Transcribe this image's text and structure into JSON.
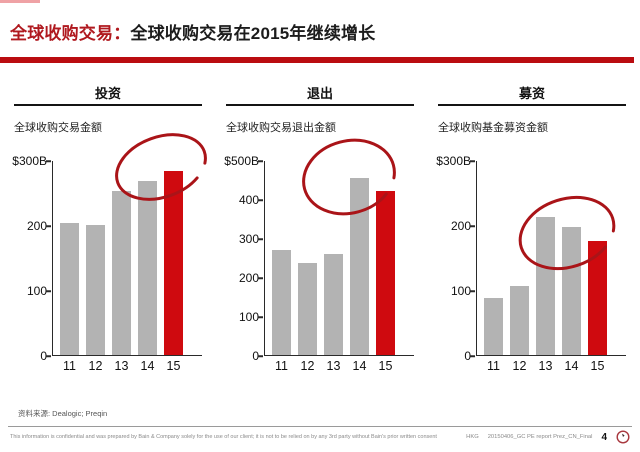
{
  "title": {
    "lead": "全球收购交易：",
    "rest": "全球收购交易在2015年继续增长"
  },
  "panels": [
    {
      "tab": "投资",
      "subtitle": "全球收购交易金额"
    },
    {
      "tab": "退出",
      "subtitle": "全球收购交易退出金额"
    },
    {
      "tab": "募资",
      "subtitle": "全球收购基金募资金额"
    }
  ],
  "chart_data": [
    {
      "type": "bar",
      "panel": "投资",
      "title": "全球收购交易金额",
      "unit": "$B",
      "categories": [
        "11",
        "12",
        "13",
        "14",
        "15"
      ],
      "values": [
        203,
        200,
        253,
        268,
        283
      ],
      "ylim": [
        0,
        300
      ],
      "ytick_labels": [
        "$300B",
        "200",
        "100",
        "0"
      ],
      "ytick_values": [
        300,
        200,
        100,
        0
      ],
      "highlight_index": 4,
      "grid": false,
      "legend": "none",
      "annotation": "hand-drawn red circle around 2014-2015 bar tops"
    },
    {
      "type": "bar",
      "panel": "退出",
      "title": "全球收购交易退出金额",
      "unit": "$B",
      "categories": [
        "11",
        "12",
        "13",
        "14",
        "15"
      ],
      "values": [
        270,
        237,
        259,
        455,
        420
      ],
      "ylim": [
        0,
        500
      ],
      "ytick_labels": [
        "$500B",
        "400",
        "300",
        "200",
        "100",
        "0"
      ],
      "ytick_values": [
        500,
        400,
        300,
        200,
        100,
        0
      ],
      "highlight_index": 4,
      "grid": false,
      "legend": "none",
      "annotation": "hand-drawn red circle around 2014-2015 bar tops"
    },
    {
      "type": "bar",
      "panel": "募资",
      "title": "全球收购基金募资金额",
      "unit": "$B",
      "categories": [
        "11",
        "12",
        "13",
        "14",
        "15"
      ],
      "values": [
        88,
        107,
        213,
        197,
        175
      ],
      "ylim": [
        0,
        300
      ],
      "ytick_labels": [
        "$300B",
        "200",
        "100",
        "0"
      ],
      "ytick_values": [
        300,
        200,
        100,
        0
      ],
      "highlight_index": 4,
      "grid": false,
      "legend": "none",
      "annotation": "hand-drawn red circle around 2014-2015 bar tops"
    }
  ],
  "source": "资料来源: Dealogic; Preqin",
  "footer": {
    "disclaimer": "This information is confidential and was prepared by Bain & Company solely for the use of our client; it is not to be relied on by any 3rd party without Bain's prior written consent",
    "office": "HKG",
    "filename": "20150406_GC PE report Prez_CN_Final",
    "page": "4"
  },
  "colors": {
    "accent_red": "#ba0c10",
    "title_red": "#b0191f",
    "bar_gray": "#b3b3b3",
    "bar_highlight_red": "#cf0a0f",
    "annotation_red": "#aa1418"
  }
}
